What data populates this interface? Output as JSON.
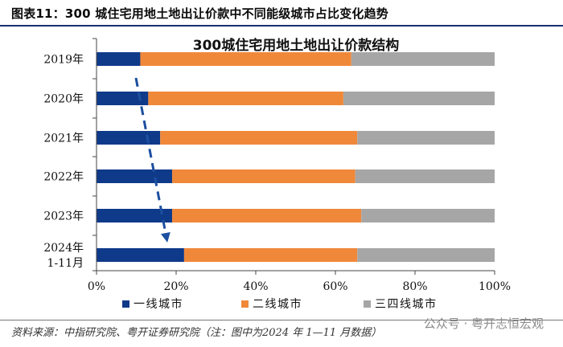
{
  "figure": {
    "label": "图表11：300 城住宅用地土地出让价款中不同能级城市占比变化趋势",
    "source": "资料来源：中指研究院、粤开证券研究院（注：图中为2024 年 1—11 月数据）",
    "watermark": "公众号 · 粤开志恒宏观"
  },
  "chart_data": {
    "type": "bar",
    "orientation": "horizontal",
    "stacked": true,
    "title": "300城住宅用地土地出让价款结构",
    "categories": [
      "2019年",
      "2020年",
      "2021年",
      "2022年",
      "2023年",
      "2024年\n1-11月"
    ],
    "series": [
      {
        "name": "一线城市",
        "values": [
          11,
          13,
          16,
          19,
          19,
          22
        ]
      },
      {
        "name": "二线城市",
        "values": [
          53,
          49,
          49.5,
          46,
          47.5,
          43.5
        ]
      },
      {
        "name": "三四线城市",
        "values": [
          36,
          38,
          34.5,
          35,
          33.5,
          34.5
        ]
      }
    ],
    "colors": [
      "#0f3a8a",
      "#f0883a",
      "#a6a6a6"
    ],
    "xlim": [
      0,
      100
    ],
    "xticks": [
      "0%",
      "20%",
      "40%",
      "60%",
      "80%",
      "100%"
    ],
    "grid": false,
    "legend": "bottom",
    "annotation": "dashed arrow showing rising share of tier-1 cities"
  }
}
